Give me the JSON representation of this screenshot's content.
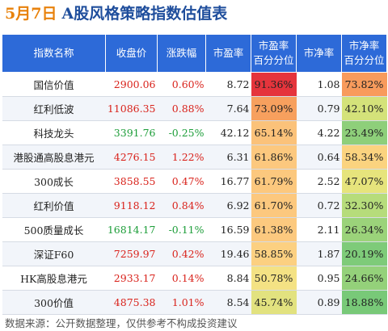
{
  "header": {
    "date": "5月7日",
    "title": "A股风格策略指数估值表"
  },
  "table": {
    "headers": [
      "指数名称",
      "收盘价",
      "涨跌幅",
      "市盈率",
      "市盈率\n百分分位",
      "市净率",
      "市净率\n百分分位"
    ],
    "rows": [
      {
        "name": "国信价值",
        "close": "2900.06",
        "chg": "0.60%",
        "pe": "8.72",
        "pe_pct": "91.36%",
        "pb": "1.08",
        "pb_pct": "73.82%",
        "dir": "up",
        "pe_color": "#e5343c",
        "pb_color": "#f89b5c"
      },
      {
        "name": "红利低波",
        "close": "11086.35",
        "chg": "0.88%",
        "pe": "7.64",
        "pe_pct": "73.09%",
        "pb": "0.79",
        "pb_pct": "42.10%",
        "dir": "up",
        "pe_color": "#f7a05e",
        "pb_color": "#d4e27a"
      },
      {
        "name": "科技龙头",
        "close": "3391.76",
        "chg": "-0.25%",
        "pe": "42.12",
        "pe_pct": "65.14%",
        "pb": "4.22",
        "pb_pct": "23.49%",
        "dir": "down",
        "pe_color": "#fbc27a",
        "pb_color": "#8ecf7a"
      },
      {
        "name": "港股通高股息港元",
        "close": "4276.15",
        "chg": "1.22%",
        "pe": "6.31",
        "pe_pct": "61.86%",
        "pb": "0.64",
        "pb_pct": "58.34%",
        "dir": "up",
        "pe_color": "#fcc87e",
        "pb_color": "#fbd37f"
      },
      {
        "name": "300成长",
        "close": "3858.55",
        "chg": "0.47%",
        "pe": "16.77",
        "pe_pct": "61.79%",
        "pb": "2.52",
        "pb_pct": "47.07%",
        "dir": "up",
        "pe_color": "#fcc87e",
        "pb_color": "#e6e47c"
      },
      {
        "name": "红利价值",
        "close": "9118.12",
        "chg": "0.84%",
        "pe": "6.92",
        "pe_pct": "61.70%",
        "pb": "0.72",
        "pb_pct": "32.30%",
        "dir": "up",
        "pe_color": "#fcc87e",
        "pb_color": "#b6dc7b"
      },
      {
        "name": "500质量成长",
        "close": "16814.17",
        "chg": "-0.11%",
        "pe": "16.59",
        "pe_pct": "61.38%",
        "pb": "2.11",
        "pb_pct": "26.34%",
        "dir": "down",
        "pe_color": "#fcc97f",
        "pb_color": "#9bd37a"
      },
      {
        "name": "深证F60",
        "close": "7259.97",
        "chg": "0.42%",
        "pe": "19.46",
        "pe_pct": "58.85%",
        "pb": "1.87",
        "pb_pct": "20.19%",
        "dir": "up",
        "pe_color": "#fcd081",
        "pb_color": "#7ecb79"
      },
      {
        "name": "HK高股息港元",
        "close": "2933.17",
        "chg": "0.14%",
        "pe": "8.84",
        "pe_pct": "50.78%",
        "pb": "0.95",
        "pb_pct": "24.66%",
        "dir": "up",
        "pe_color": "#f4e284",
        "pb_color": "#94d17a"
      },
      {
        "name": "300价值",
        "close": "4875.38",
        "chg": "1.01%",
        "pe": "8.54",
        "pe_pct": "45.74%",
        "pb": "0.89",
        "pb_pct": "18.88%",
        "dir": "up",
        "pe_color": "#e2e27f",
        "pb_color": "#78c978"
      }
    ]
  },
  "footer": "数据来源：公开数据整理，仅供参考不构成投资建议"
}
